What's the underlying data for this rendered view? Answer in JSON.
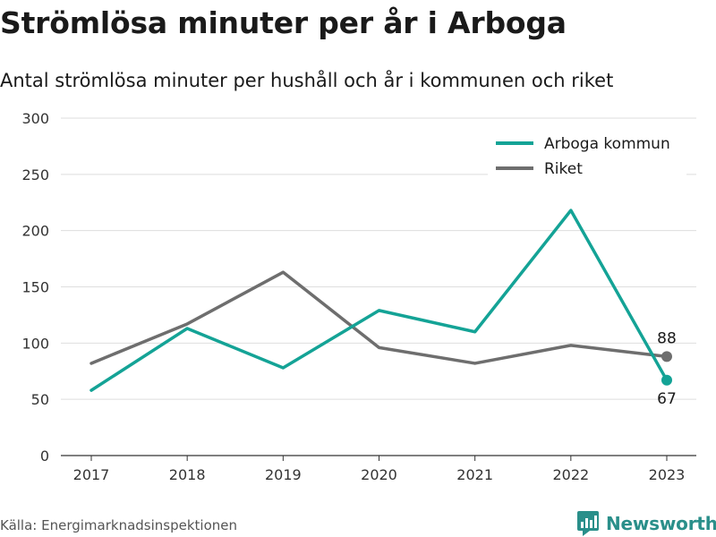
{
  "header": {
    "title": "Strömlösa minuter per år i Arboga",
    "subtitle": "Antal strömlösa minuter per hushåll och år i kommunen och riket"
  },
  "footer": {
    "source": "Källa: Energimarknadsinspektionen",
    "brand": "Newsworthy"
  },
  "chart_data": {
    "type": "line",
    "categories": [
      "2017",
      "2018",
      "2019",
      "2020",
      "2021",
      "2022",
      "2023"
    ],
    "series": [
      {
        "name": "Arboga kommun",
        "color": "#14a396",
        "values": [
          58,
          113,
          78,
          129,
          110,
          218,
          67
        ],
        "end_label": "67"
      },
      {
        "name": "Riket",
        "color": "#6e6e6e",
        "values": [
          82,
          117,
          163,
          96,
          82,
          98,
          88
        ],
        "end_label": "88"
      }
    ],
    "ylim": [
      0,
      300
    ],
    "yticks": [
      "0",
      "50",
      "100",
      "150",
      "200",
      "250",
      "300"
    ],
    "grid": true,
    "legend": "top-right"
  }
}
